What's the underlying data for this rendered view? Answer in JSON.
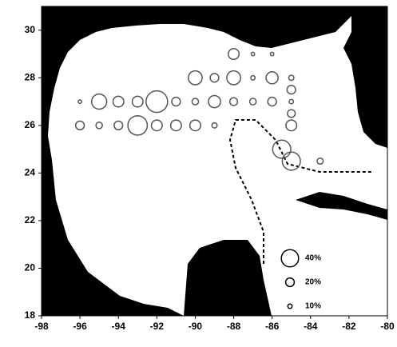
{
  "chart_data": {
    "type": "bubble",
    "x": [
      -96,
      -95,
      -94,
      -93,
      -92,
      -91,
      -90,
      -89,
      -88,
      -87,
      -86,
      -85,
      -96,
      -95,
      -94,
      -93,
      -92,
      -91,
      -90,
      -89,
      -85,
      -90,
      -89,
      -88,
      -87,
      -86,
      -85,
      -88,
      -87,
      -86,
      -85,
      -85,
      -85.5,
      -85,
      -83.5
    ],
    "y": [
      27,
      27,
      27,
      27,
      27,
      27,
      27,
      27,
      27,
      27,
      27,
      27,
      26,
      26,
      26,
      26,
      26,
      26,
      26,
      26,
      26,
      28,
      28,
      28,
      28,
      28,
      28,
      29,
      29,
      29,
      27.5,
      26.5,
      25,
      24.5,
      24.5
    ],
    "sizes": [
      8,
      35,
      25,
      25,
      50,
      20,
      15,
      28,
      18,
      15,
      20,
      10,
      20,
      15,
      20,
      45,
      25,
      25,
      25,
      12,
      25,
      32,
      20,
      32,
      10,
      28,
      12,
      25,
      8,
      8,
      20,
      18,
      42,
      42,
      14
    ],
    "color": "#555555",
    "xlim": [
      -98,
      -80
    ],
    "xticks": [
      -98,
      -96,
      -94,
      -92,
      -90,
      -88,
      -86,
      -84,
      -82,
      -80
    ],
    "ylim": [
      18,
      31
    ],
    "yticks": [
      18,
      20,
      22,
      24,
      26,
      28,
      30
    ],
    "legend": [
      {
        "label": "40%",
        "size": 40
      },
      {
        "label": "20%",
        "size": 20
      },
      {
        "label": "10%",
        "size": 10
      }
    ]
  }
}
